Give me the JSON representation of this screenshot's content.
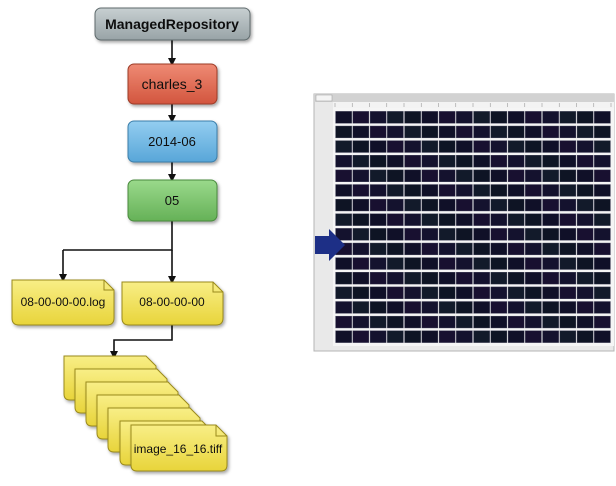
{
  "tree": {
    "root_label": "ManagedRepository",
    "user_label": "charles_3",
    "month_label": "2014-06",
    "day_label": "05",
    "log_file_label": "08-00-00-00.log",
    "fileset_label": "08-00-00-00",
    "image_file_label": "image_16_16.tiff"
  },
  "colors": {
    "root": "#aab4b6",
    "user": "#e06a52",
    "month": "#6fb7e3",
    "day": "#7dc46d",
    "file": "#f2e35a",
    "connector": "#111111",
    "arrow": "#1d2f86"
  },
  "plate_panel": {
    "rows": 16,
    "columns": 16,
    "pointer_icon": "arrow-right-icon"
  }
}
